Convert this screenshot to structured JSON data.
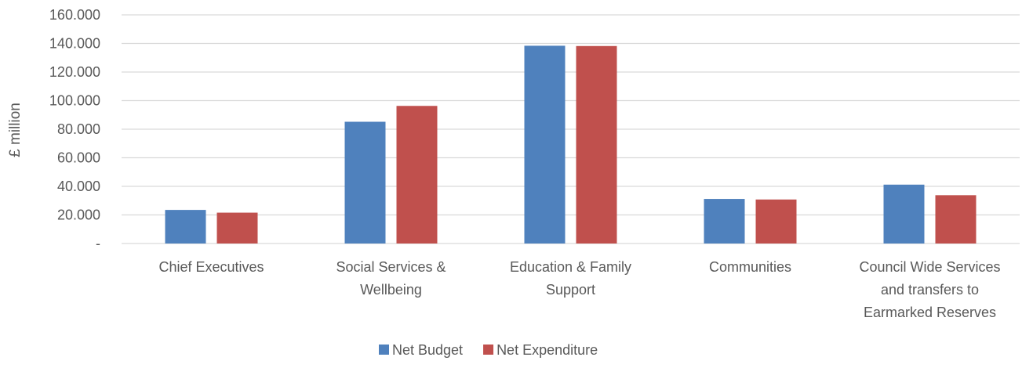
{
  "chart_data": {
    "type": "bar",
    "title": "",
    "xlabel": "",
    "ylabel": "£ million",
    "ylim": [
      0,
      160
    ],
    "yticks": [
      {
        "value": 0,
        "label": "-"
      },
      {
        "value": 20,
        "label": "20.000"
      },
      {
        "value": 40,
        "label": "40.000"
      },
      {
        "value": 60,
        "label": "60.000"
      },
      {
        "value": 80,
        "label": "80.000"
      },
      {
        "value": 100,
        "label": "100.000"
      },
      {
        "value": 120,
        "label": "120.000"
      },
      {
        "value": 140,
        "label": "140.000"
      },
      {
        "value": 160,
        "label": "160.000"
      }
    ],
    "grid": true,
    "legend_position": "bottom",
    "categories": [
      [
        "Chief Executives"
      ],
      [
        "Social Services &",
        "Wellbeing"
      ],
      [
        "Education & Family",
        "Support"
      ],
      [
        "Communities"
      ],
      [
        "Council Wide Services",
        "and transfers to",
        "Earmarked Reserves"
      ]
    ],
    "series": [
      {
        "name": "Net Budget",
        "color": "#4F81BD",
        "values": [
          23.5,
          85.2,
          138.4,
          31.2,
          41.2
        ]
      },
      {
        "name": "Net Expenditure",
        "color": "#C0504D",
        "values": [
          21.6,
          96.3,
          138.2,
          30.8,
          33.8
        ]
      }
    ]
  }
}
